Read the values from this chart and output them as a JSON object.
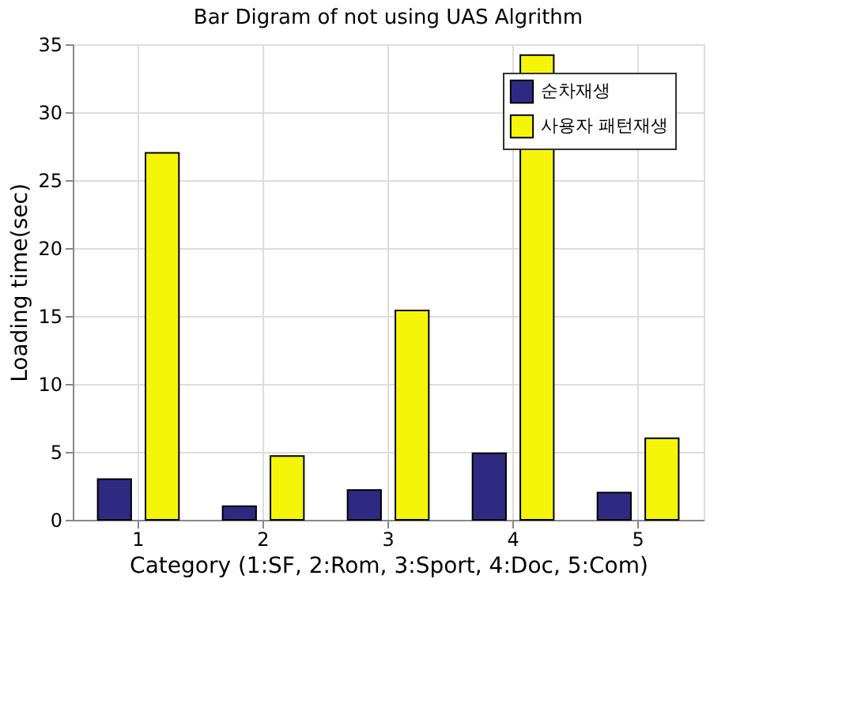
{
  "chart_data": {
    "type": "bar",
    "title": "Bar Digram of not using UAS Algrithm",
    "xlabel": "Category (1:SF, 2:Rom, 3:Sport, 4:Doc, 5:Com)",
    "ylabel": "Loading time(sec)",
    "categories": [
      "1",
      "2",
      "3",
      "4",
      "5"
    ],
    "series": [
      {
        "name": "순차재생",
        "color": "#2e2a82",
        "values": [
          3.0,
          1.0,
          2.2,
          4.9,
          2.0
        ]
      },
      {
        "name": "사용자 패턴재생",
        "color": "#f5f50a",
        "values": [
          27.0,
          4.7,
          15.4,
          34.2,
          6.0
        ]
      }
    ],
    "ylim": [
      0,
      35
    ],
    "yticks": [
      0,
      5,
      10,
      15,
      20,
      25,
      30,
      35
    ],
    "grid": true,
    "legend": "top right"
  }
}
